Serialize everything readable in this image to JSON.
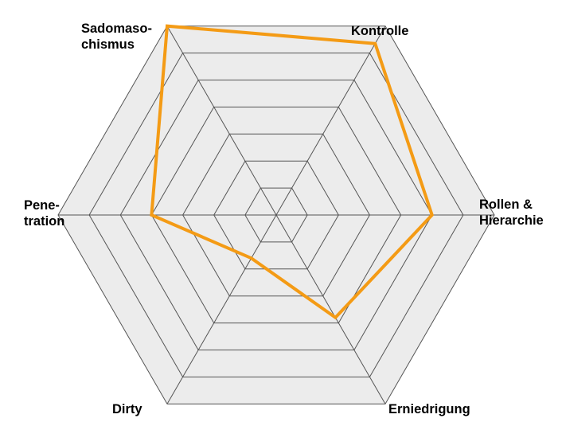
{
  "chart_data": {
    "type": "radar",
    "title": "",
    "axes": [
      "Kontrolle",
      "Rollen &\nHierarchie",
      "Erniedrigung",
      "Dirty",
      "Pene-\ntration",
      "Sadomaso-\nchismus"
    ],
    "rings": 7,
    "range": [
      0,
      7
    ],
    "grid": true,
    "series": [
      {
        "values": [
          6.35,
          5.0,
          3.8,
          1.6,
          4.0,
          7.0
        ]
      }
    ]
  },
  "colors": {
    "series": "#f49b15",
    "grid_fill": "#ececec",
    "grid_line": "#555555"
  }
}
